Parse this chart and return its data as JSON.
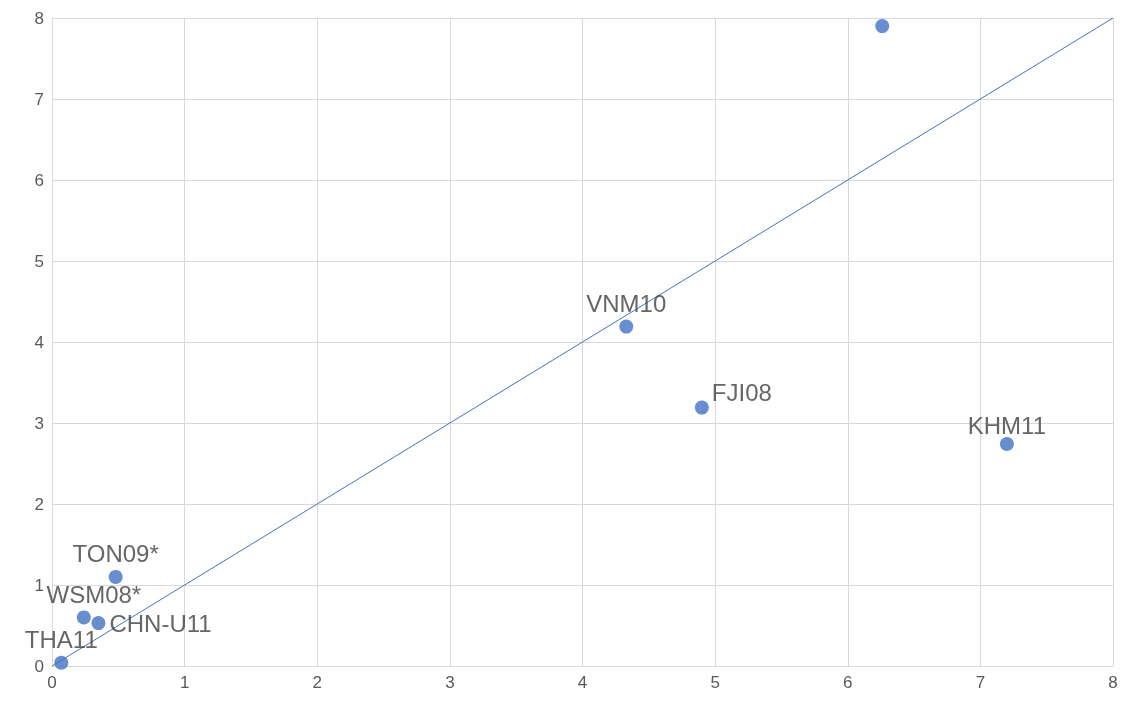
{
  "chart_data": {
    "type": "scatter",
    "xlim": [
      0,
      8
    ],
    "ylim": [
      0,
      8
    ],
    "xticks": [
      0,
      1,
      2,
      3,
      4,
      5,
      6,
      7,
      8
    ],
    "yticks": [
      0,
      1,
      2,
      3,
      4,
      5,
      6,
      7,
      8
    ],
    "grid": true,
    "series": [
      {
        "marker": "circle",
        "color": "#4472c4",
        "x": [
          6.26,
          4.33,
          4.9,
          7.2,
          0.48,
          0.24,
          0.35,
          0.07
        ],
        "values": [
          7.9,
          4.19,
          3.19,
          2.74,
          1.1,
          0.6,
          0.53,
          0.04
        ]
      },
      {
        "type": "line",
        "color": "#4472c4",
        "x": [
          0,
          8
        ],
        "values": [
          0,
          8
        ],
        "line_style": "solid",
        "marker": "none"
      }
    ],
    "annotations": [
      {
        "text": "VNM10",
        "x": 4.33,
        "y": 4.19
      },
      {
        "text": "FJI08",
        "x": 4.9,
        "y": 3.19
      },
      {
        "text": "KHM11",
        "x": 7.2,
        "y": 2.74
      },
      {
        "text": "TON09*",
        "x": 0.48,
        "y": 1.1
      },
      {
        "text": "WSM08*",
        "x": 0.24,
        "y": 0.6
      },
      {
        "text": "CHN-U11",
        "x": 0.35,
        "y": 0.53
      },
      {
        "text": "THA11",
        "x": 0.07,
        "y": 0.04
      }
    ]
  }
}
